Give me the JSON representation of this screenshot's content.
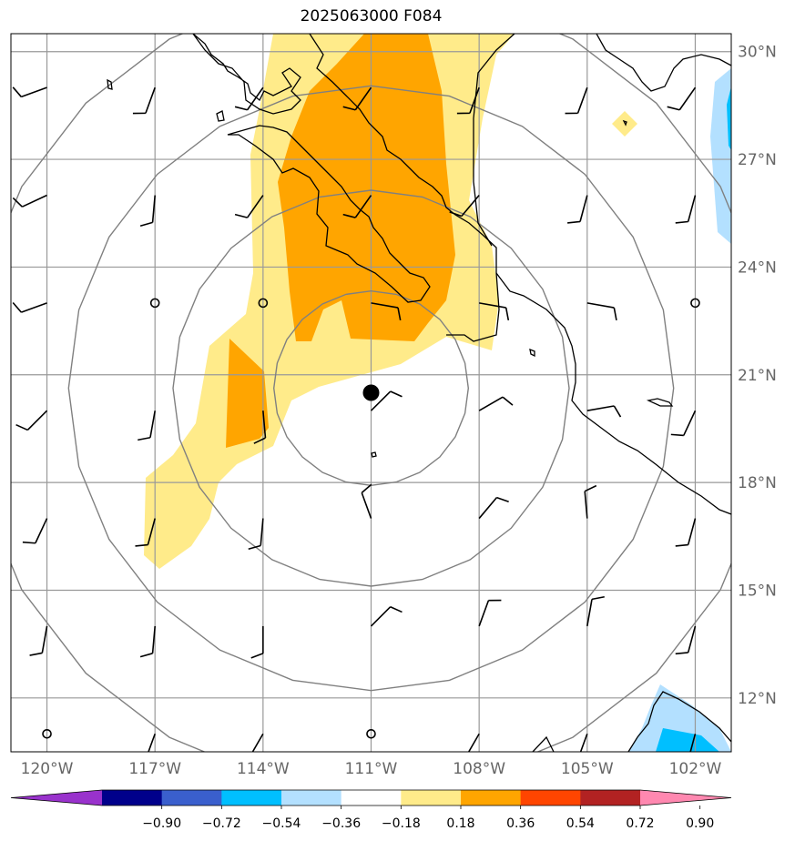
{
  "title": "2025063000 F084",
  "map": {
    "lat_range": [
      10.5,
      30.5
    ],
    "lon_range": [
      -121.0,
      -101.0
    ],
    "gridlines": true,
    "lat_labels": [
      "30°N",
      "27°N",
      "24°N",
      "21°N",
      "18°N",
      "15°N",
      "12°N"
    ],
    "lat_values": [
      30,
      27,
      24,
      21,
      18,
      15,
      12
    ],
    "lon_labels": [
      "120°W",
      "117°W",
      "114°W",
      "111°W",
      "108°W",
      "105°W",
      "102°W"
    ],
    "lon_values": [
      -120,
      -117,
      -114,
      -111,
      -108,
      -105,
      -102
    ],
    "storm_center": {
      "lon": -111.0,
      "lat": 20.5
    },
    "range_ring_radii_deg": [
      2.7,
      5.5,
      8.4,
      11.2
    ],
    "colors": {
      "positive_1": "#ffeb8a",
      "positive_2": "#ffa500",
      "negative_1": "#b3e0ff",
      "negative_2": "#00bfff",
      "grid": "#999999",
      "ring": "#808080"
    }
  },
  "colorbar": {
    "colors": [
      "#9932cc",
      "#00008b",
      "#3a5fcd",
      "#00bfff",
      "#b3e0ff",
      "#ffffff",
      "#ffeb8a",
      "#ffa500",
      "#ff4500",
      "#b22222",
      "#ff88b0"
    ],
    "ticks": [
      "−0.90",
      "−0.72",
      "−0.54",
      "−0.36",
      "−0.18",
      "0.18",
      "0.36",
      "0.54",
      "0.72",
      "0.90"
    ],
    "extend": "both"
  }
}
